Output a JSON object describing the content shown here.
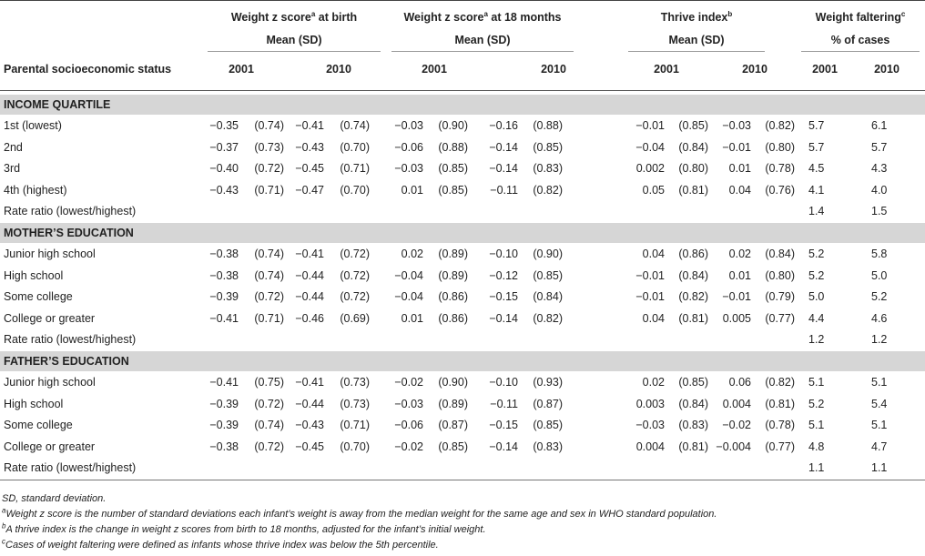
{
  "header": {
    "col1_line1": "Weight z score",
    "col1_sup": "a",
    "col1_suffix": " at birth",
    "col2_line1": "Weight z score",
    "col2_sup": "a",
    "col2_suffix": " at 18 months",
    "col3_line1": "Thrive index",
    "col3_sup": "b",
    "col4_line1": "Weight faltering",
    "col4_sup": "c",
    "mean_sd": "Mean (SD)",
    "pct_cases": "% of cases",
    "row_label": "Parental socioeconomic status",
    "year_2001": "2001",
    "year_2010": "2010"
  },
  "sections": [
    {
      "title": "INCOME QUARTILE",
      "rows": [
        {
          "label": "1st (lowest)",
          "b01": "−0.35",
          "b01sd": "(0.74)",
          "b10": "−0.41",
          "b10sd": "(0.74)",
          "m01": "−0.03",
          "m01sd": "(0.90)",
          "m10": "−0.16",
          "m10sd": "(0.88)",
          "t01": "−0.01",
          "t01sd": "(0.85)",
          "t10": "−0.03",
          "t10sd": "(0.82)",
          "f01": "5.7",
          "f10": "6.1"
        },
        {
          "label": "2nd",
          "b01": "−0.37",
          "b01sd": "(0.73)",
          "b10": "−0.43",
          "b10sd": "(0.70)",
          "m01": "−0.06",
          "m01sd": "(0.88)",
          "m10": "−0.14",
          "m10sd": "(0.85)",
          "t01": "−0.04",
          "t01sd": "(0.84)",
          "t10": "−0.01",
          "t10sd": "(0.80)",
          "f01": "5.7",
          "f10": "5.7"
        },
        {
          "label": "3rd",
          "b01": "−0.40",
          "b01sd": "(0.72)",
          "b10": "−0.45",
          "b10sd": "(0.71)",
          "m01": "−0.03",
          "m01sd": "(0.85)",
          "m10": "−0.14",
          "m10sd": "(0.83)",
          "t01": "0.002",
          "t01sd": "(0.80)",
          "t10": "0.01",
          "t10sd": "(0.78)",
          "f01": "4.5",
          "f10": "4.3"
        },
        {
          "label": "4th (highest)",
          "b01": "−0.43",
          "b01sd": "(0.71)",
          "b10": "−0.47",
          "b10sd": "(0.70)",
          "m01": "0.01",
          "m01sd": "(0.85)",
          "m10": "−0.11",
          "m10sd": "(0.82)",
          "t01": "0.05",
          "t01sd": "(0.81)",
          "t10": "0.04",
          "t10sd": "(0.76)",
          "f01": "4.1",
          "f10": "4.0"
        },
        {
          "label": "Rate ratio (lowest/highest)",
          "b01": "",
          "b01sd": "",
          "b10": "",
          "b10sd": "",
          "m01": "",
          "m01sd": "",
          "m10": "",
          "m10sd": "",
          "t01": "",
          "t01sd": "",
          "t10": "",
          "t10sd": "",
          "f01": "1.4",
          "f10": "1.5"
        }
      ]
    },
    {
      "title": "MOTHER’S EDUCATION",
      "rows": [
        {
          "label": "Junior high school",
          "b01": "−0.38",
          "b01sd": "(0.74)",
          "b10": "−0.41",
          "b10sd": "(0.72)",
          "m01": "0.02",
          "m01sd": "(0.89)",
          "m10": "−0.10",
          "m10sd": "(0.90)",
          "t01": "0.04",
          "t01sd": "(0.86)",
          "t10": "0.02",
          "t10sd": "(0.84)",
          "f01": "5.2",
          "f10": "5.8"
        },
        {
          "label": "High school",
          "b01": "−0.38",
          "b01sd": "(0.74)",
          "b10": "−0.44",
          "b10sd": "(0.72)",
          "m01": "−0.04",
          "m01sd": "(0.89)",
          "m10": "−0.12",
          "m10sd": "(0.85)",
          "t01": "−0.01",
          "t01sd": "(0.84)",
          "t10": "0.01",
          "t10sd": "(0.80)",
          "f01": "5.2",
          "f10": "5.0"
        },
        {
          "label": "Some college",
          "b01": "−0.39",
          "b01sd": "(0.72)",
          "b10": "−0.44",
          "b10sd": "(0.72)",
          "m01": "−0.04",
          "m01sd": "(0.86)",
          "m10": "−0.15",
          "m10sd": "(0.84)",
          "t01": "−0.01",
          "t01sd": "(0.82)",
          "t10": "−0.01",
          "t10sd": "(0.79)",
          "f01": "5.0",
          "f10": "5.2"
        },
        {
          "label": "College or greater",
          "b01": "−0.41",
          "b01sd": "(0.71)",
          "b10": "−0.46",
          "b10sd": "(0.69)",
          "m01": "0.01",
          "m01sd": "(0.86)",
          "m10": "−0.14",
          "m10sd": "(0.82)",
          "t01": "0.04",
          "t01sd": "(0.81)",
          "t10": "0.005",
          "t10sd": "(0.77)",
          "f01": "4.4",
          "f10": "4.6"
        },
        {
          "label": "Rate ratio (lowest/highest)",
          "b01": "",
          "b01sd": "",
          "b10": "",
          "b10sd": "",
          "m01": "",
          "m01sd": "",
          "m10": "",
          "m10sd": "",
          "t01": "",
          "t01sd": "",
          "t10": "",
          "t10sd": "",
          "f01": "1.2",
          "f10": "1.2"
        }
      ]
    },
    {
      "title": "FATHER’S EDUCATION",
      "rows": [
        {
          "label": "Junior high school",
          "b01": "−0.41",
          "b01sd": "(0.75)",
          "b10": "−0.41",
          "b10sd": "(0.73)",
          "m01": "−0.02",
          "m01sd": "(0.90)",
          "m10": "−0.10",
          "m10sd": "(0.93)",
          "t01": "0.02",
          "t01sd": "(0.85)",
          "t10": "0.06",
          "t10sd": "(0.82)",
          "f01": "5.1",
          "f10": "5.1"
        },
        {
          "label": "High school",
          "b01": "−0.39",
          "b01sd": "(0.72)",
          "b10": "−0.44",
          "b10sd": "(0.73)",
          "m01": "−0.03",
          "m01sd": "(0.89)",
          "m10": "−0.11",
          "m10sd": "(0.87)",
          "t01": "0.003",
          "t01sd": "(0.84)",
          "t10": "0.004",
          "t10sd": "(0.81)",
          "f01": "5.2",
          "f10": "5.4"
        },
        {
          "label": "Some college",
          "b01": "−0.39",
          "b01sd": "(0.74)",
          "b10": "−0.43",
          "b10sd": "(0.71)",
          "m01": "−0.06",
          "m01sd": "(0.87)",
          "m10": "−0.15",
          "m10sd": "(0.85)",
          "t01": "−0.03",
          "t01sd": "(0.83)",
          "t10": "−0.02",
          "t10sd": "(0.78)",
          "f01": "5.1",
          "f10": "5.1"
        },
        {
          "label": "College or greater",
          "b01": "−0.38",
          "b01sd": "(0.72)",
          "b10": "−0.45",
          "b10sd": "(0.70)",
          "m01": "−0.02",
          "m01sd": "(0.85)",
          "m10": "−0.14",
          "m10sd": "(0.83)",
          "t01": "0.004",
          "t01sd": "(0.81)",
          "t10": "−0.004",
          "t10sd": "(0.77)",
          "f01": "4.8",
          "f10": "4.7"
        },
        {
          "label": "Rate ratio (lowest/highest)",
          "b01": "",
          "b01sd": "",
          "b10": "",
          "b10sd": "",
          "m01": "",
          "m01sd": "",
          "m10": "",
          "m10sd": "",
          "t01": "",
          "t01sd": "",
          "t10": "",
          "t10sd": "",
          "f01": "1.1",
          "f10": "1.1"
        }
      ]
    }
  ],
  "footnotes": {
    "sd": "SD, standard deviation.",
    "a_mark": "a",
    "a_text": "Weight z score is the number of standard deviations each infant’s weight is away from the median weight for the same age and sex in WHO standard population.",
    "b_mark": "b",
    "b_text": "A thrive index is the change in weight z scores from birth to 18 months, adjusted for the infant’s initial weight.",
    "c_mark": "c",
    "c_text": "Cases of weight faltering were defined as infants whose thrive index was below the 5th percentile."
  },
  "colors": {
    "band": "#d6d6d6",
    "rule": "#999999",
    "text": "#222222"
  }
}
